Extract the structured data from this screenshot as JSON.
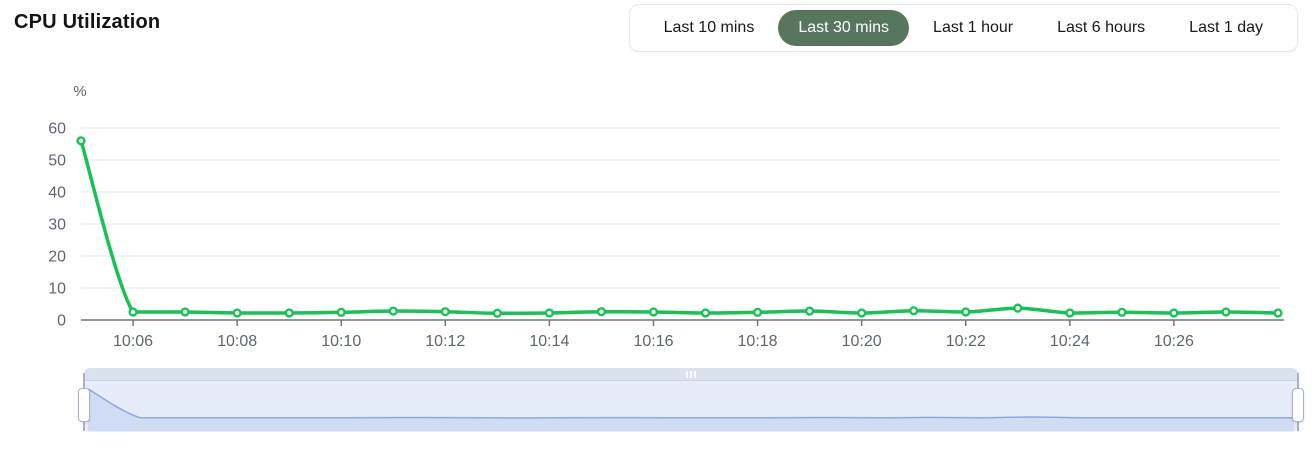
{
  "header": {
    "title": "CPU Utilization"
  },
  "time_range_selector": {
    "options": [
      {
        "label": "Last 10 mins",
        "selected": false
      },
      {
        "label": "Last 30 mins",
        "selected": true
      },
      {
        "label": "Last 1 hour",
        "selected": false
      },
      {
        "label": "Last 6 hours",
        "selected": false
      },
      {
        "label": "Last 1 day",
        "selected": false
      }
    ]
  },
  "chart_data": {
    "type": "line",
    "title": "CPU Utilization",
    "ylabel": "%",
    "x": [
      "10:05",
      "10:06",
      "10:07",
      "10:08",
      "10:09",
      "10:10",
      "10:11",
      "10:12",
      "10:13",
      "10:14",
      "10:15",
      "10:16",
      "10:17",
      "10:18",
      "10:19",
      "10:20",
      "10:21",
      "10:22",
      "10:23",
      "10:24",
      "10:25",
      "10:26",
      "10:27",
      "10:28"
    ],
    "values": [
      56,
      2.5,
      2.5,
      2.2,
      2.2,
      2.4,
      2.8,
      2.6,
      2.1,
      2.2,
      2.6,
      2.5,
      2.2,
      2.4,
      2.8,
      2.2,
      2.9,
      2.5,
      3.7,
      2.2,
      2.4,
      2.2,
      2.5,
      2.2
    ],
    "x_tick_labels": [
      "10:06",
      "10:08",
      "10:10",
      "10:12",
      "10:14",
      "10:16",
      "10:18",
      "10:20",
      "10:22",
      "10:24",
      "10:26"
    ],
    "y_ticks": [
      0,
      10,
      20,
      30,
      40,
      50,
      60
    ],
    "ylim": [
      0,
      60
    ],
    "grid": true,
    "legend_position": "none",
    "marker": "circle"
  },
  "colors": {
    "line_green": "#17c256",
    "selected_pill": "#58765e",
    "axis_text": "#5f6670",
    "grid_line": "#e4e8f2",
    "axis_line": "#6e7480",
    "slider_track": "#e6ecfa",
    "slider_bar": "#dbe2ef",
    "slider_line": "#8fa8dc",
    "slider_area": "#d0dcf3"
  },
  "slider": {
    "grip_icon": "|||"
  }
}
